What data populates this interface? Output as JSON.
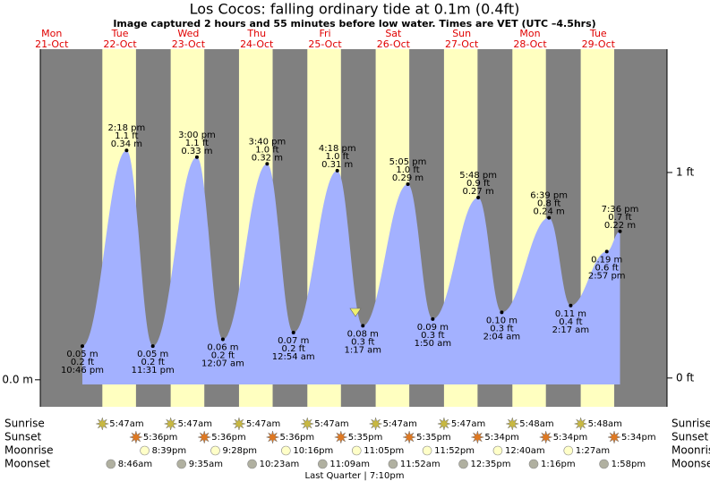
{
  "chart_data": {
    "type": "tide",
    "title": "Los Cocos: falling  ordinary tide at 0.1m (0.4ft)",
    "subtitle": "Image captured 2 hours and 55 minutes before low water. Times are VET (UTC –4.5hrs)",
    "ylim": [
      -0.04,
      0.49
    ],
    "yticks": [
      {
        "value": 0,
        "label": "0.0 m"
      }
    ],
    "y2lim": [
      -0.14,
      1.6
    ],
    "y2ticks": [
      {
        "value": 1,
        "label": "1 ft"
      },
      {
        "value": 0,
        "label": "0 ft"
      }
    ],
    "row_labels": {
      "sunrise": "Sunrise",
      "sunset": "Sunset",
      "moonrise": "Moonrise",
      "moonset": "Moonset"
    },
    "moon_phase": "Last Quarter | 7:10pm",
    "days": [
      {
        "name": "Mon",
        "date": "21-Oct",
        "sunrise": null,
        "sunset": null,
        "moonrise": null,
        "moonset": null,
        "tides": [
          {
            "time": "10:46 pm",
            "height": 0.05,
            "height_label": "0.05 m",
            "feet_label": "0.2 ft"
          }
        ]
      },
      {
        "name": "Tue",
        "date": "22-Oct",
        "sunrise": "5:47am",
        "sunset": "5:36pm",
        "moonrise": "8:39pm",
        "moonset": "8:46am",
        "tides": [
          {
            "time": "2:18 pm",
            "height": 0.34,
            "height_label": "0.34 m",
            "feet_label": "1.1 ft"
          },
          {
            "time": "11:31 pm",
            "height": 0.05,
            "height_label": "0.05 m",
            "feet_label": "0.2 ft"
          }
        ]
      },
      {
        "name": "Wed",
        "date": "23-Oct",
        "sunrise": "5:47am",
        "sunset": "5:36pm",
        "moonrise": "9:28pm",
        "moonset": "9:35am",
        "tides": [
          {
            "time": "3:00 pm",
            "height": 0.33,
            "height_label": "0.33 m",
            "feet_label": "1.1 ft"
          }
        ]
      },
      {
        "name": "Thu",
        "date": "24-Oct",
        "sunrise": "5:47am",
        "sunset": "5:36pm",
        "moonrise": "10:16pm",
        "moonset": "10:23am",
        "tides": [
          {
            "time": "12:07 am",
            "height": 0.06,
            "height_label": "0.06 m",
            "feet_label": "0.2 ft"
          },
          {
            "time": "3:40 pm",
            "height": 0.32,
            "height_label": "0.32 m",
            "feet_label": "1.0 ft"
          }
        ]
      },
      {
        "name": "Fri",
        "date": "25-Oct",
        "sunrise": "5:47am",
        "sunset": "5:35pm",
        "moonrise": "11:05pm",
        "moonset": "11:09am",
        "tides": [
          {
            "time": "12:54 am",
            "height": 0.07,
            "height_label": "0.07 m",
            "feet_label": "0.2 ft"
          },
          {
            "time": "4:18 pm",
            "height": 0.31,
            "height_label": "0.31 m",
            "feet_label": "1.0 ft"
          }
        ]
      },
      {
        "name": "Sat",
        "date": "26-Oct",
        "sunrise": "5:47am",
        "sunset": "5:35pm",
        "moonrise": "11:52pm",
        "moonset": "11:52am",
        "tides": [
          {
            "time": "1:17 am",
            "height": 0.08,
            "height_label": "0.08 m",
            "feet_label": "0.3 ft"
          },
          {
            "time": "5:05 pm",
            "height": 0.29,
            "height_label": "0.29 m",
            "feet_label": "1.0 ft"
          }
        ]
      },
      {
        "name": "Sun",
        "date": "27-Oct",
        "sunrise": "5:47am",
        "sunset": "5:34pm",
        "moonrise": null,
        "moonset": "12:35pm",
        "tides": [
          {
            "time": "1:50 am",
            "height": 0.09,
            "height_label": "0.09 m",
            "feet_label": "0.3 ft"
          },
          {
            "time": "5:48 pm",
            "height": 0.27,
            "height_label": "0.27 m",
            "feet_label": "0.9 ft"
          }
        ]
      },
      {
        "name": "Mon",
        "date": "28-Oct",
        "sunrise": "5:48am",
        "sunset": "5:34pm",
        "moonrise": "12:40am",
        "moonset": "1:16pm",
        "tides": [
          {
            "time": "2:04 am",
            "height": 0.1,
            "height_label": "0.10 m",
            "feet_label": "0.3 ft"
          },
          {
            "time": "6:39 pm",
            "height": 0.24,
            "height_label": "0.24 m",
            "feet_label": "0.8 ft"
          }
        ]
      },
      {
        "name": "Tue",
        "date": "29-Oct",
        "sunrise": "5:48am",
        "sunset": "5:34pm",
        "moonrise": "1:27am",
        "moonset": "1:58pm",
        "tides": [
          {
            "time": "2:17 am",
            "height": 0.11,
            "height_label": "0.11 m",
            "feet_label": "0.4 ft"
          },
          {
            "time": "2:57 pm",
            "height": 0.19,
            "height_label": "0.19 m",
            "feet_label": "0.6 ft"
          },
          {
            "time": "7:36 pm",
            "height": 0.22,
            "height_label": "0.22 m",
            "feet_label": "0.7 ft"
          }
        ]
      }
    ]
  }
}
